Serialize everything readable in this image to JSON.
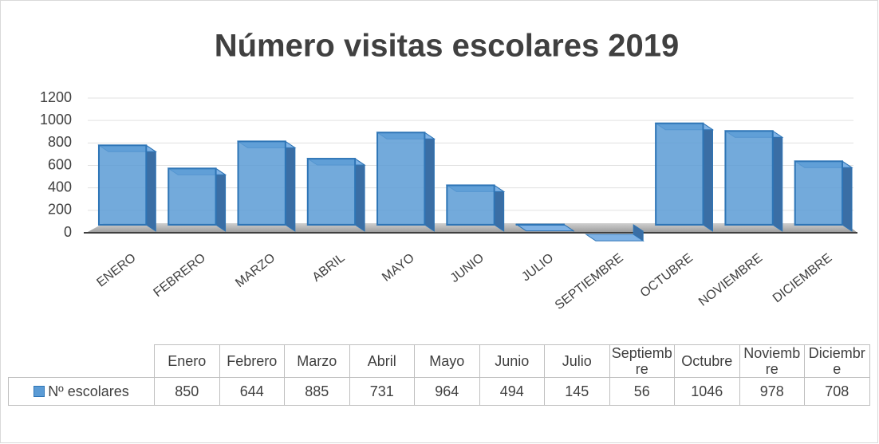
{
  "chart_data": {
    "type": "bar3d",
    "title": "Número visitas escolares 2019",
    "categories": [
      "ENERO",
      "FEBRERO",
      "MARZO",
      "ABRIL",
      "MAYO",
      "JUNIO",
      "JULIO",
      "SEPTIEMBRE",
      "OCTUBRE",
      "NOVIEMBRE",
      "DICIEMBRE"
    ],
    "table_categories": [
      "Enero",
      "Febrero",
      "Marzo",
      "Abril",
      "Mayo",
      "Junio",
      "Julio",
      "Septiembre",
      "Octubre",
      "Noviembre",
      "Diciembre"
    ],
    "series": [
      {
        "name": "Nº escolares",
        "color": "#5b9bd5",
        "values": [
          850,
          644,
          885,
          731,
          964,
          494,
          145,
          56,
          1046,
          978,
          708
        ]
      }
    ],
    "ylim": [
      0,
      1200
    ],
    "yticks": [
      0,
      200,
      400,
      600,
      800,
      1000,
      1200
    ],
    "grid": true
  }
}
